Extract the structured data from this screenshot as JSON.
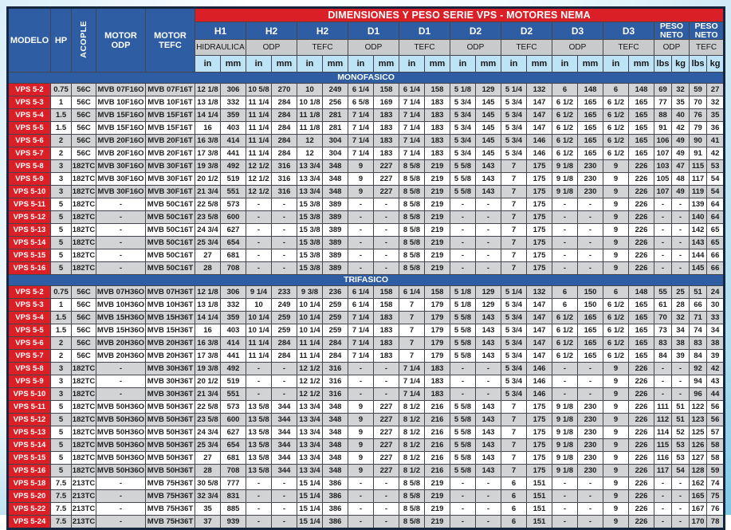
{
  "title": "DIMENSIONES Y PESO SERIE VPS - MOTORES NEMA",
  "columns": {
    "modelo": "MODELO",
    "hp": "HP",
    "acople": "ACOPLE",
    "motor_odp": "MOTOR ODP",
    "motor_tefc": "MOTOR TEFC"
  },
  "dim_groups": [
    {
      "label": "H1",
      "sub": "HIDRAULICA",
      "units": [
        "in",
        "mm"
      ]
    },
    {
      "label": "H2",
      "sub": "ODP",
      "units": [
        "in",
        "mm"
      ]
    },
    {
      "label": "H2",
      "sub": "TEFC",
      "units": [
        "in",
        "mm"
      ]
    },
    {
      "label": "D1",
      "sub": "ODP",
      "units": [
        "in",
        "mm"
      ]
    },
    {
      "label": "D1",
      "sub": "TEFC",
      "units": [
        "in",
        "mm"
      ]
    },
    {
      "label": "D2",
      "sub": "ODP",
      "units": [
        "in",
        "mm"
      ]
    },
    {
      "label": "D2",
      "sub": "TEFC",
      "units": [
        "in",
        "mm"
      ]
    },
    {
      "label": "D3",
      "sub": "ODP",
      "units": [
        "in",
        "mm"
      ]
    },
    {
      "label": "D3",
      "sub": "TEFC",
      "units": [
        "in",
        "mm"
      ]
    },
    {
      "label": "PESO NETO",
      "sub": "ODP",
      "units": [
        "lbs",
        "kg"
      ]
    },
    {
      "label": "PESO NETO",
      "sub": "TEFC",
      "units": [
        "lbs",
        "kg"
      ]
    }
  ],
  "colors": {
    "header_blue": "#2e5da4",
    "banner_red": "#da1f27",
    "model_red": "#da1f27",
    "sub_gray": "#c9cacb",
    "unit_blue": "#bfe3f6",
    "row_shade": "#d2d3d4",
    "frame_navy": "#16263e"
  },
  "sections": [
    {
      "name": "MONOFASICO",
      "rows": [
        [
          "VPS 5-2",
          "0.75",
          "56C",
          "MVB 07F16O",
          "MVB 07F16T",
          "12 1/8",
          "306",
          "10 5/8",
          "270",
          "10",
          "249",
          "6 1/4",
          "158",
          "6 1/4",
          "158",
          "5 1/8",
          "129",
          "5 1/4",
          "132",
          "6",
          "148",
          "6",
          "148",
          "69",
          "32",
          "59",
          "27"
        ],
        [
          "VPS 5-3",
          "1",
          "56C",
          "MVB 10F16O",
          "MVB 10F16T",
          "13 1/8",
          "332",
          "11 1/4",
          "284",
          "10 1/8",
          "256",
          "6 5/8",
          "169",
          "7 1/4",
          "183",
          "5 3/4",
          "145",
          "5 3/4",
          "147",
          "6 1/2",
          "165",
          "6 1/2",
          "165",
          "77",
          "35",
          "70",
          "32"
        ],
        [
          "VPS 5-4",
          "1.5",
          "56C",
          "MVB 15F16O",
          "MVB 15F16T",
          "14 1/4",
          "359",
          "11 1/4",
          "284",
          "11 1/8",
          "281",
          "7 1/4",
          "183",
          "7 1/4",
          "183",
          "5 3/4",
          "145",
          "5 3/4",
          "147",
          "6 1/2",
          "165",
          "6 1/2",
          "165",
          "88",
          "40",
          "76",
          "35"
        ],
        [
          "VPS 5-5",
          "1.5",
          "56C",
          "MVB 15F16O",
          "MVB 15F16T",
          "16",
          "403",
          "11 1/4",
          "284",
          "11 1/8",
          "281",
          "7 1/4",
          "183",
          "7 1/4",
          "183",
          "5 3/4",
          "145",
          "5 3/4",
          "147",
          "6 1/2",
          "165",
          "6 1/2",
          "165",
          "91",
          "42",
          "79",
          "36"
        ],
        [
          "VPS 5-6",
          "2",
          "56C",
          "MVB 20F16O",
          "MVB 20F16T",
          "16 3/8",
          "414",
          "11 1/4",
          "284",
          "12",
          "304",
          "7 1/4",
          "183",
          "7 1/4",
          "183",
          "5 3/4",
          "145",
          "5 3/4",
          "146",
          "6 1/2",
          "165",
          "6 1/2",
          "165",
          "106",
          "49",
          "90",
          "41"
        ],
        [
          "VPS 5-7",
          "2",
          "56C",
          "MVB 20F16O",
          "MVB 20F16T",
          "17 3/8",
          "441",
          "11 1/4",
          "284",
          "12",
          "304",
          "7 1/4",
          "183",
          "7 1/4",
          "183",
          "5 3/4",
          "145",
          "5 3/4",
          "146",
          "6 1/2",
          "165",
          "6 1/2",
          "165",
          "107",
          "49",
          "91",
          "42"
        ],
        [
          "VPS 5-8",
          "3",
          "182TC",
          "MVB 30F16O",
          "MVB 30F16T",
          "19 3/8",
          "492",
          "12 1/2",
          "316",
          "13 3/4",
          "348",
          "9",
          "227",
          "8 5/8",
          "219",
          "5 5/8",
          "143",
          "7",
          "175",
          "9 1/8",
          "230",
          "9",
          "226",
          "103",
          "47",
          "115",
          "53"
        ],
        [
          "VPS 5-9",
          "3",
          "182TC",
          "MVB 30F16O",
          "MVB 30F16T",
          "20 1/2",
          "519",
          "12 1/2",
          "316",
          "13 3/4",
          "348",
          "9",
          "227",
          "8 5/8",
          "219",
          "5 5/8",
          "143",
          "7",
          "175",
          "9 1/8",
          "230",
          "9",
          "226",
          "105",
          "48",
          "117",
          "54"
        ],
        [
          "VPS 5-10",
          "3",
          "182TC",
          "MVB 30F16O",
          "MVB 30F16T",
          "21 3/4",
          "551",
          "12 1/2",
          "316",
          "13 3/4",
          "348",
          "9",
          "227",
          "8 5/8",
          "219",
          "5 5/8",
          "143",
          "7",
          "175",
          "9 1/8",
          "230",
          "9",
          "226",
          "107",
          "49",
          "119",
          "54"
        ],
        [
          "VPS 5-11",
          "5",
          "182TC",
          "-",
          "MVB 50C16T",
          "22 5/8",
          "573",
          "-",
          "-",
          "15 3/8",
          "389",
          "-",
          "-",
          "8 5/8",
          "219",
          "-",
          "-",
          "7",
          "175",
          "-",
          "-",
          "9",
          "226",
          "-",
          "-",
          "139",
          "64"
        ],
        [
          "VPS 5-12",
          "5",
          "182TC",
          "-",
          "MVB 50C16T",
          "23 5/8",
          "600",
          "-",
          "-",
          "15 3/8",
          "389",
          "-",
          "-",
          "8 5/8",
          "219",
          "-",
          "-",
          "7",
          "175",
          "-",
          "-",
          "9",
          "226",
          "-",
          "-",
          "140",
          "64"
        ],
        [
          "VPS 5-13",
          "5",
          "182TC",
          "-",
          "MVB 50C16T",
          "24 3/4",
          "627",
          "-",
          "-",
          "15 3/8",
          "389",
          "-",
          "-",
          "8 5/8",
          "219",
          "-",
          "-",
          "7",
          "175",
          "-",
          "-",
          "9",
          "226",
          "-",
          "-",
          "142",
          "65"
        ],
        [
          "VPS 5-14",
          "5",
          "182TC",
          "-",
          "MVB 50C16T",
          "25 3/4",
          "654",
          "-",
          "-",
          "15 3/8",
          "389",
          "-",
          "-",
          "8 5/8",
          "219",
          "-",
          "-",
          "7",
          "175",
          "-",
          "-",
          "9",
          "226",
          "-",
          "-",
          "143",
          "65"
        ],
        [
          "VPS 5-15",
          "5",
          "182TC",
          "-",
          "MVB 50C16T",
          "27",
          "681",
          "-",
          "-",
          "15 3/8",
          "389",
          "-",
          "-",
          "8 5/8",
          "219",
          "-",
          "-",
          "7",
          "175",
          "-",
          "-",
          "9",
          "226",
          "-",
          "-",
          "144",
          "66"
        ],
        [
          "VPS 5-16",
          "5",
          "182TC",
          "-",
          "MVB 50C16T",
          "28",
          "708",
          "-",
          "-",
          "15 3/8",
          "389",
          "-",
          "-",
          "8 5/8",
          "219",
          "-",
          "-",
          "7",
          "175",
          "-",
          "-",
          "9",
          "226",
          "-",
          "-",
          "145",
          "66"
        ]
      ]
    },
    {
      "name": "TRIFASICO",
      "rows": [
        [
          "VPS 5-2",
          "0.75",
          "56C",
          "MVB 07H36O",
          "MVB 07H36T",
          "12 1/8",
          "306",
          "9 1/4",
          "233",
          "9 3/8",
          "236",
          "6 1/4",
          "158",
          "6 1/4",
          "158",
          "5 1/8",
          "129",
          "5 1/4",
          "132",
          "6",
          "150",
          "6",
          "148",
          "55",
          "25",
          "51",
          "24"
        ],
        [
          "VPS 5-3",
          "1",
          "56C",
          "MVB 10H36O",
          "MVB 10H36T",
          "13 1/8",
          "332",
          "10",
          "249",
          "10 1/4",
          "259",
          "6 1/4",
          "158",
          "7",
          "179",
          "5 1/8",
          "129",
          "5 3/4",
          "147",
          "6",
          "150",
          "6 1/2",
          "165",
          "61",
          "28",
          "66",
          "30"
        ],
        [
          "VPS 5-4",
          "1.5",
          "56C",
          "MVB 15H36O",
          "MVB 15H36T",
          "14 1/4",
          "359",
          "10 1/4",
          "259",
          "10 1/4",
          "259",
          "7 1/4",
          "183",
          "7",
          "179",
          "5 5/8",
          "143",
          "5 3/4",
          "147",
          "6 1/2",
          "165",
          "6 1/2",
          "165",
          "70",
          "32",
          "71",
          "33"
        ],
        [
          "VPS 5-5",
          "1.5",
          "56C",
          "MVB 15H36O",
          "MVB 15H36T",
          "16",
          "403",
          "10 1/4",
          "259",
          "10 1/4",
          "259",
          "7 1/4",
          "183",
          "7",
          "179",
          "5 5/8",
          "143",
          "5 3/4",
          "147",
          "6 1/2",
          "165",
          "6 1/2",
          "165",
          "73",
          "34",
          "74",
          "34"
        ],
        [
          "VPS 5-6",
          "2",
          "56C",
          "MVB 20H36O",
          "MVB 20H36T",
          "16 3/8",
          "414",
          "11 1/4",
          "284",
          "11 1/4",
          "284",
          "7 1/4",
          "183",
          "7",
          "179",
          "5 5/8",
          "143",
          "5 3/4",
          "147",
          "6 1/2",
          "165",
          "6 1/2",
          "165",
          "83",
          "38",
          "83",
          "38"
        ],
        [
          "VPS 5-7",
          "2",
          "56C",
          "MVB 20H36O",
          "MVB 20H36T",
          "17 3/8",
          "441",
          "11 1/4",
          "284",
          "11 1/4",
          "284",
          "7 1/4",
          "183",
          "7",
          "179",
          "5 5/8",
          "143",
          "5 3/4",
          "147",
          "6 1/2",
          "165",
          "6 1/2",
          "165",
          "84",
          "39",
          "84",
          "39"
        ],
        [
          "VPS 5-8",
          "3",
          "182TC",
          "-",
          "MVB 30H36T",
          "19 3/8",
          "492",
          "-",
          "-",
          "12 1/2",
          "316",
          "-",
          "-",
          "7 1/4",
          "183",
          "-",
          "-",
          "5 3/4",
          "146",
          "-",
          "-",
          "9",
          "226",
          "-",
          "-",
          "92",
          "42"
        ],
        [
          "VPS 5-9",
          "3",
          "182TC",
          "-",
          "MVB 30H36T",
          "20 1/2",
          "519",
          "-",
          "-",
          "12 1/2",
          "316",
          "-",
          "-",
          "7 1/4",
          "183",
          "-",
          "-",
          "5 3/4",
          "146",
          "-",
          "-",
          "9",
          "226",
          "-",
          "-",
          "94",
          "43"
        ],
        [
          "VPS 5-10",
          "3",
          "182TC",
          "-",
          "MVB 30H36T",
          "21 3/4",
          "551",
          "-",
          "-",
          "12 1/2",
          "316",
          "-",
          "-",
          "7 1/4",
          "183",
          "-",
          "-",
          "5 3/4",
          "146",
          "-",
          "-",
          "9",
          "226",
          "-",
          "-",
          "96",
          "44"
        ],
        [
          "VPS 5-11",
          "5",
          "182TC",
          "MVB 50H36O",
          "MVB 50H36T",
          "22 5/8",
          "573",
          "13 5/8",
          "344",
          "13 3/4",
          "348",
          "9",
          "227",
          "8 1/2",
          "216",
          "5 5/8",
          "143",
          "7",
          "175",
          "9 1/8",
          "230",
          "9",
          "226",
          "111",
          "51",
          "122",
          "56"
        ],
        [
          "VPS 5-12",
          "5",
          "182TC",
          "MVB 50H36O",
          "MVB 50H36T",
          "23 5/8",
          "600",
          "13 5/8",
          "344",
          "13 3/4",
          "348",
          "9",
          "227",
          "8 1/2",
          "216",
          "5 5/8",
          "143",
          "7",
          "175",
          "9 1/8",
          "230",
          "9",
          "226",
          "112",
          "51",
          "123",
          "56"
        ],
        [
          "VPS 5-13",
          "5",
          "182TC",
          "MVB 50H36O",
          "MVB 50H36T",
          "24 3/4",
          "627",
          "13 5/8",
          "344",
          "13 3/4",
          "348",
          "9",
          "227",
          "8 1/2",
          "216",
          "5 5/8",
          "143",
          "7",
          "175",
          "9 1/8",
          "230",
          "9",
          "226",
          "114",
          "52",
          "125",
          "57"
        ],
        [
          "VPS 5-14",
          "5",
          "182TC",
          "MVB 50H36O",
          "MVB 50H36T",
          "25 3/4",
          "654",
          "13 5/8",
          "344",
          "13 3/4",
          "348",
          "9",
          "227",
          "8 1/2",
          "216",
          "5 5/8",
          "143",
          "7",
          "175",
          "9 1/8",
          "230",
          "9",
          "226",
          "115",
          "53",
          "126",
          "58"
        ],
        [
          "VPS 5-15",
          "5",
          "182TC",
          "MVB 50H36O",
          "MVB 50H36T",
          "27",
          "681",
          "13 5/8",
          "344",
          "13 3/4",
          "348",
          "9",
          "227",
          "8 1/2",
          "216",
          "5 5/8",
          "143",
          "7",
          "175",
          "9 1/8",
          "230",
          "9",
          "226",
          "116",
          "53",
          "127",
          "58"
        ],
        [
          "VPS 5-16",
          "5",
          "182TC",
          "MVB 50H36O",
          "MVB 50H36T",
          "28",
          "708",
          "13 5/8",
          "344",
          "13 3/4",
          "348",
          "9",
          "227",
          "8 1/2",
          "216",
          "5 5/8",
          "143",
          "7",
          "175",
          "9 1/8",
          "230",
          "9",
          "226",
          "117",
          "54",
          "128",
          "59"
        ],
        [
          "VPS 5-18",
          "7.5",
          "213TC",
          "-",
          "MVB 75H36T",
          "30 5/8",
          "777",
          "-",
          "-",
          "15 1/4",
          "386",
          "-",
          "-",
          "8 5/8",
          "219",
          "-",
          "-",
          "6",
          "151",
          "-",
          "-",
          "9",
          "226",
          "-",
          "-",
          "162",
          "74"
        ],
        [
          "VPS 5-20",
          "7.5",
          "213TC",
          "-",
          "MVB 75H36T",
          "32 3/4",
          "831",
          "-",
          "-",
          "15 1/4",
          "386",
          "-",
          "-",
          "8 5/8",
          "219",
          "-",
          "-",
          "6",
          "151",
          "-",
          "-",
          "9",
          "226",
          "-",
          "-",
          "165",
          "75"
        ],
        [
          "VPS 5-22",
          "7.5",
          "213TC",
          "-",
          "MVB 75H36T",
          "35",
          "885",
          "-",
          "-",
          "15 1/4",
          "386",
          "-",
          "-",
          "8 5/8",
          "219",
          "-",
          "-",
          "6",
          "151",
          "-",
          "-",
          "9",
          "226",
          "-",
          "-",
          "167",
          "76"
        ],
        [
          "VPS 5-24",
          "7.5",
          "213TC",
          "-",
          "MVB 75H36T",
          "37",
          "939",
          "-",
          "-",
          "15 1/4",
          "386",
          "-",
          "-",
          "8 5/8",
          "219",
          "-",
          "-",
          "6",
          "151",
          "-",
          "-",
          "9",
          "226",
          "-",
          "-",
          "170",
          "78"
        ]
      ]
    }
  ]
}
